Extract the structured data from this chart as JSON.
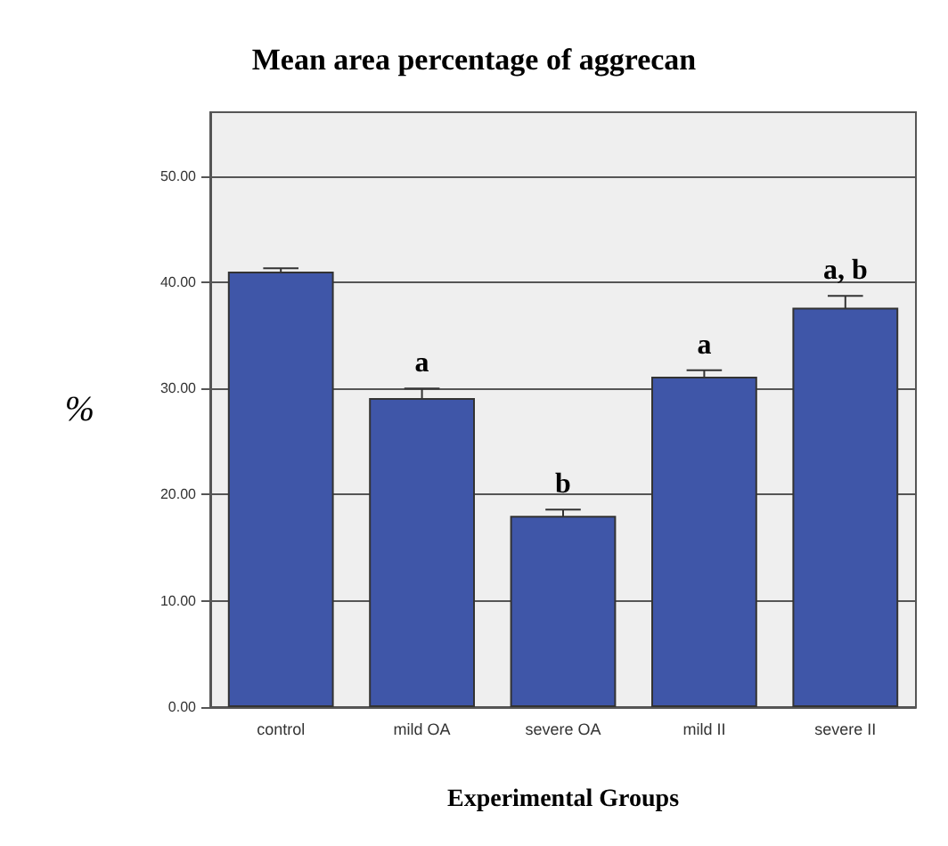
{
  "chart_data": {
    "type": "bar",
    "title": "Mean area percentage of aggrecan",
    "xlabel": "Experimental Groups",
    "ylabel": "%",
    "categories": [
      "control",
      "mild OA",
      "severe OA",
      "mild II",
      "severe II"
    ],
    "values": [
      41.0,
      29.1,
      18.0,
      31.1,
      37.6
    ],
    "errors": [
      0.3,
      0.9,
      0.6,
      0.6,
      1.1
    ],
    "color": "#3f56a8",
    "ylim": [
      0,
      56
    ],
    "yticks": [
      {
        "value": 0,
        "label": "0.00"
      },
      {
        "value": 10,
        "label": "10.00"
      },
      {
        "value": 20,
        "label": "20.00"
      },
      {
        "value": 30,
        "label": "30.00"
      },
      {
        "value": 40,
        "label": "40.00"
      },
      {
        "value": 50,
        "label": "50.00"
      }
    ],
    "grid": "y",
    "value_labels": [
      null,
      "a",
      "b",
      "a",
      "a, b"
    ]
  }
}
